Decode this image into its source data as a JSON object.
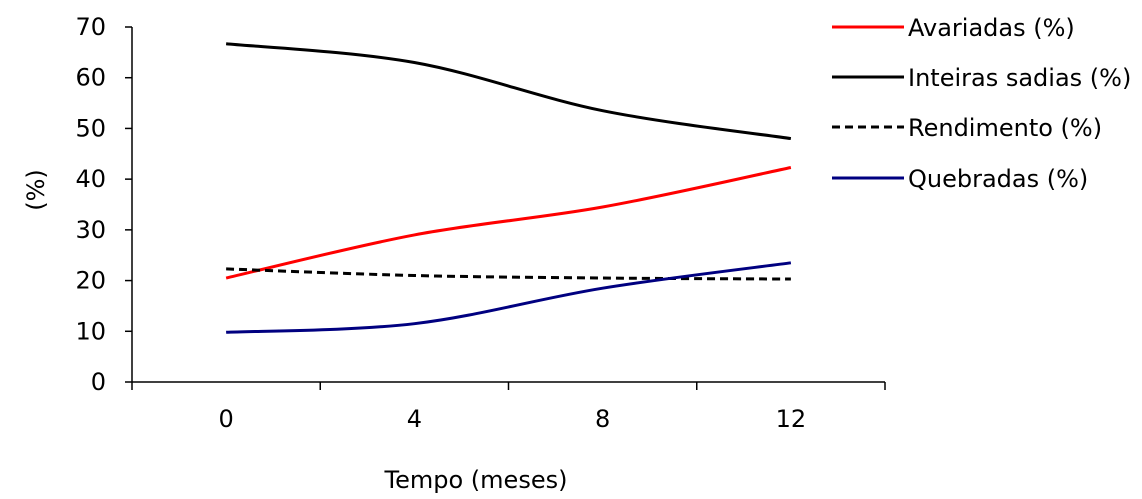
{
  "chart_data": {
    "type": "line",
    "categories": [
      "0",
      "4",
      "8",
      "12"
    ],
    "x": [
      0,
      4,
      8,
      12
    ],
    "xlabel": "Tempo (meses)",
    "ylabel": "(%)",
    "ylim": [
      0,
      70
    ],
    "yticks": [
      0,
      10,
      20,
      30,
      40,
      50,
      60,
      70
    ],
    "xlim": [
      -2,
      14
    ],
    "grid": false,
    "legend_position": "right",
    "series": [
      {
        "name": "Avariadas (%)",
        "color": "#ff0000",
        "dash": "solid",
        "values": [
          20.5,
          29,
          34.5,
          42.3
        ]
      },
      {
        "name": "Inteiras sadias (%)",
        "color": "#000000",
        "dash": "solid",
        "values": [
          66.7,
          63,
          53.5,
          48
        ]
      },
      {
        "name": "Rendimento (%)",
        "color": "#000000",
        "dash": "dashed",
        "values": [
          22.3,
          21,
          20.5,
          20.3
        ]
      },
      {
        "name": "Quebradas (%)",
        "color": "#000080",
        "dash": "solid",
        "values": [
          9.8,
          11.5,
          18.5,
          23.5
        ]
      }
    ]
  }
}
